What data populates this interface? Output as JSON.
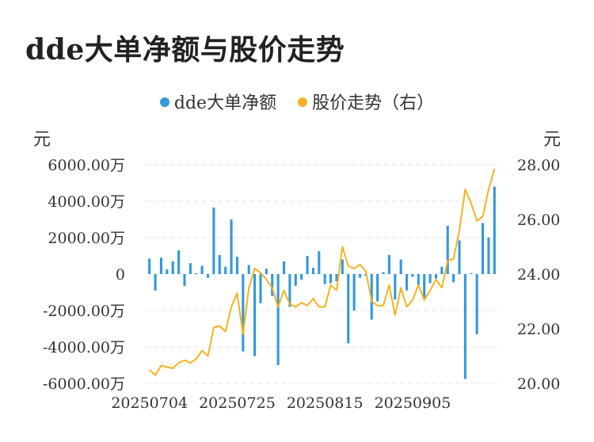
{
  "title": "dde大单净额与股价走势",
  "legend": [
    {
      "label": "dde大单净额",
      "color": "#3398dc"
    },
    {
      "label": "股价走势（右）",
      "color": "#f5b220"
    }
  ],
  "units": {
    "left": "元",
    "right": "元"
  },
  "chart_data": {
    "type": "bar+line",
    "title": "dde大单净额与股价走势",
    "ylim_left": [
      -6000,
      6000
    ],
    "ylim_right": [
      20,
      28
    ],
    "y_ticks_left": [
      "6000.00万",
      "4000.00万",
      "2000.00万",
      "0",
      "-2000.00万",
      "-4000.00万",
      "-6000.00万"
    ],
    "y_ticks_right": [
      "28.00",
      "26.00",
      "24.00",
      "22.00",
      "20.00"
    ],
    "x_ticks": [
      {
        "index": 0,
        "label": "20250704"
      },
      {
        "index": 15,
        "label": "20250725"
      },
      {
        "index": 30,
        "label": "20250815"
      },
      {
        "index": 45,
        "label": "20250905"
      }
    ],
    "series": [
      {
        "name": "dde大单净额",
        "type": "bar",
        "color": "#3398dc",
        "values": [
          850,
          -900,
          900,
          250,
          700,
          1300,
          -650,
          600,
          50,
          450,
          -200,
          3650,
          1050,
          400,
          3000,
          950,
          -4250,
          500,
          -4500,
          -1600,
          300,
          -1200,
          -5000,
          700,
          -1800,
          -650,
          -300,
          1000,
          350,
          1250,
          -550,
          -500,
          -400,
          800,
          -3800,
          -2000,
          -200,
          -100,
          -2500,
          -1500,
          100,
          1050,
          -1400,
          800,
          -900,
          -150,
          -600,
          -1300,
          -500,
          -250,
          400,
          2650,
          -450,
          1850,
          -5750,
          50,
          -3300,
          2800,
          2000,
          4800
        ]
      },
      {
        "name": "股价走势（右）",
        "type": "line",
        "color": "#f5b220",
        "values": [
          20.5,
          20.3,
          20.65,
          20.6,
          20.55,
          20.75,
          20.85,
          20.75,
          20.9,
          21.2,
          21.0,
          22.05,
          22.1,
          21.9,
          22.8,
          23.3,
          21.8,
          23.5,
          24.2,
          24.05,
          23.8,
          23.5,
          22.8,
          23.4,
          22.9,
          22.8,
          22.95,
          22.85,
          23.1,
          22.8,
          22.8,
          23.6,
          23.4,
          25.0,
          24.3,
          24.2,
          24.35,
          24.1,
          23.0,
          22.85,
          22.85,
          23.6,
          22.5,
          23.5,
          22.8,
          23.05,
          23.6,
          23.05,
          23.4,
          23.8,
          23.5,
          24.5,
          24.55,
          25.6,
          27.1,
          26.6,
          25.95,
          26.1,
          27.1,
          27.85
        ]
      }
    ],
    "grid": true,
    "legend_position": "top-center"
  }
}
